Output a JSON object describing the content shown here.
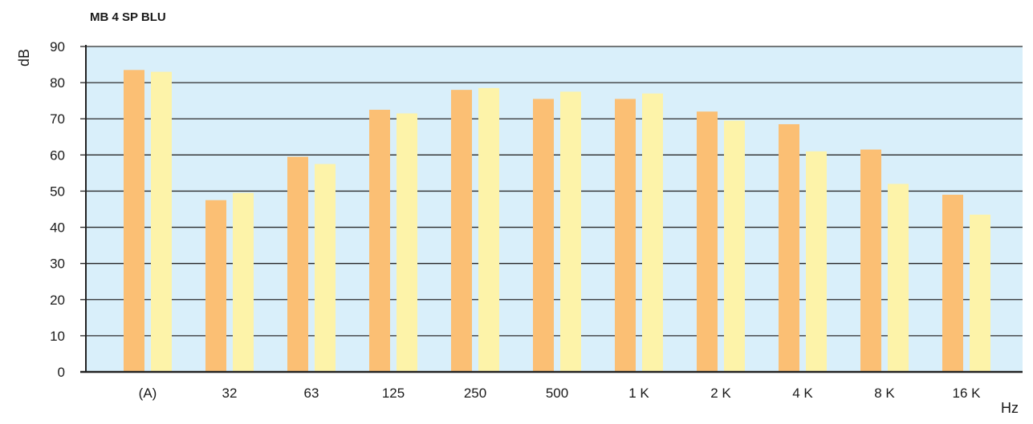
{
  "chart_data": {
    "type": "bar",
    "title": "MB 4 SP BLU",
    "ylabel": "dB",
    "xlabel": "Hz",
    "ylim": [
      0,
      90
    ],
    "yticks": [
      0,
      10,
      20,
      30,
      40,
      50,
      60,
      70,
      80,
      90
    ],
    "grid": true,
    "categories": [
      "(A)",
      "32",
      "63",
      "125",
      "250",
      "500",
      "1 K",
      "2 K",
      "4 K",
      "8 K",
      "16 K"
    ],
    "series": [
      {
        "color": "#fbbf74",
        "values": [
          83.5,
          47.5,
          59.5,
          72.5,
          78,
          75.5,
          75.5,
          72,
          68.5,
          61.5,
          49
        ]
      },
      {
        "color": "#fdf3a9",
        "values": [
          83,
          49.5,
          57.5,
          71.5,
          78.5,
          77.5,
          77,
          69.5,
          61,
          52,
          43.5
        ]
      }
    ],
    "colors": {
      "plot_background": "#d9effa",
      "gridline": "#2a2a2a",
      "axis": "#222222"
    }
  }
}
